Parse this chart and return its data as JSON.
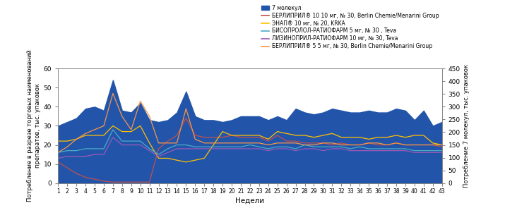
{
  "weeks": [
    1,
    2,
    3,
    4,
    5,
    6,
    7,
    8,
    9,
    10,
    11,
    12,
    13,
    14,
    15,
    16,
    17,
    18,
    19,
    20,
    21,
    22,
    23,
    24,
    25,
    26,
    27,
    28,
    29,
    30,
    31,
    32,
    33,
    34,
    35,
    36,
    37,
    38,
    39,
    40,
    41,
    42,
    43
  ],
  "area_7mol": [
    30,
    32,
    34,
    39,
    40,
    38,
    54,
    38,
    37,
    42,
    33,
    32,
    33,
    37,
    48,
    35,
    33,
    33,
    32,
    33,
    35,
    35,
    35,
    33,
    35,
    33,
    39,
    37,
    36,
    37,
    39,
    38,
    37,
    37,
    38,
    37,
    37,
    39,
    38,
    33,
    38,
    30,
    32
  ],
  "line_berlipril_10": [
    11,
    8,
    5,
    3,
    2,
    1,
    0.5,
    0.5,
    0.5,
    0.5,
    0.5,
    18,
    22,
    25,
    34,
    25,
    24,
    24,
    24,
    25,
    24,
    24,
    24,
    22,
    25,
    22,
    22,
    21,
    21,
    21,
    20,
    21,
    20,
    20,
    21,
    20,
    20,
    21,
    20,
    20,
    20,
    20,
    19
  ],
  "line_enap": [
    22,
    22,
    23,
    25,
    25,
    25,
    30,
    27,
    27,
    30,
    21,
    13,
    13,
    12,
    11,
    12,
    13,
    20,
    27,
    25,
    25,
    25,
    25,
    23,
    27,
    26,
    25,
    25,
    24,
    25,
    26,
    24,
    24,
    24,
    23,
    24,
    24,
    25,
    24,
    25,
    25,
    21,
    20
  ],
  "line_bisoprolol": [
    16,
    17,
    17,
    18,
    18,
    18,
    28,
    22,
    22,
    22,
    18,
    15,
    18,
    20,
    20,
    19,
    19,
    19,
    19,
    19,
    19,
    20,
    19,
    18,
    19,
    19,
    18,
    20,
    19,
    19,
    19,
    19,
    18,
    19,
    18,
    18,
    18,
    18,
    18,
    17,
    17,
    17,
    17
  ],
  "line_lisinopril": [
    13,
    14,
    14,
    14,
    15,
    15,
    24,
    20,
    20,
    20,
    17,
    14,
    16,
    18,
    18,
    18,
    18,
    18,
    18,
    18,
    18,
    18,
    18,
    17,
    18,
    18,
    17,
    18,
    18,
    17,
    18,
    18,
    17,
    17,
    17,
    17,
    17,
    17,
    17,
    16,
    16,
    16,
    16
  ],
  "line_berlipril_5": [
    16,
    19,
    23,
    26,
    28,
    30,
    47,
    35,
    28,
    43,
    35,
    21,
    21,
    21,
    39,
    23,
    21,
    21,
    21,
    21,
    21,
    21,
    21,
    20,
    21,
    21,
    21,
    20,
    20,
    21,
    21,
    20,
    20,
    20,
    21,
    21,
    20,
    21,
    20,
    20,
    20,
    20,
    20
  ],
  "area_color": "#2255aa",
  "color_berlipril_10": "#c0504d",
  "color_enap": "#ffc000",
  "color_bisoprolol": "#4bacc6",
  "color_lisinopril": "#9b59b6",
  "color_berlipril_5": "#f79646",
  "left_ylim": [
    0,
    60
  ],
  "right_ylim": [
    0,
    450
  ],
  "left_yticks": [
    0,
    10,
    20,
    30,
    40,
    50,
    60
  ],
  "right_yticks": [
    0,
    50,
    100,
    150,
    200,
    250,
    300,
    350,
    400,
    450
  ],
  "xlabel": "Недели",
  "ylabel_left": "Потребление в разрезе торговых наименований\nпрепаратов, тыс. упаковок",
  "ylabel_right": "Потребление 7 молекул, тыс. упаковок",
  "legend_labels": [
    "7 молекул",
    "БЕРЛИПРИЛ® 10 10 мг, № 30, Berlin Chemie/Menarini Group",
    "ЭНАП® 10 мг, № 20, KRKA",
    "БИСОПРОЛОЛ-РАТИОФАРМ 5 мг, № 30 , Teva",
    "ЛИЗИНОПРИЛ-РАТИОФАРМ 10 мг, № 30, Teva",
    "БЕРЛИПРИЛ® 5 5 мг, № 30, Berlin Chemie/Menarini Group"
  ],
  "xtick_labels": [
    "1",
    "2",
    "3",
    "4",
    "5",
    "6",
    "7",
    "8",
    "9",
    "10",
    "11",
    "12",
    "13",
    "14",
    "15",
    "16",
    "17",
    "18",
    "19",
    "20",
    "21",
    "22",
    "23",
    "24",
    "25",
    "26",
    "27",
    "28",
    "29",
    "30",
    "31",
    "32",
    "33",
    "34",
    "35",
    "36",
    "37",
    "38",
    "39",
    "40",
    "41",
    "42",
    "43"
  ]
}
